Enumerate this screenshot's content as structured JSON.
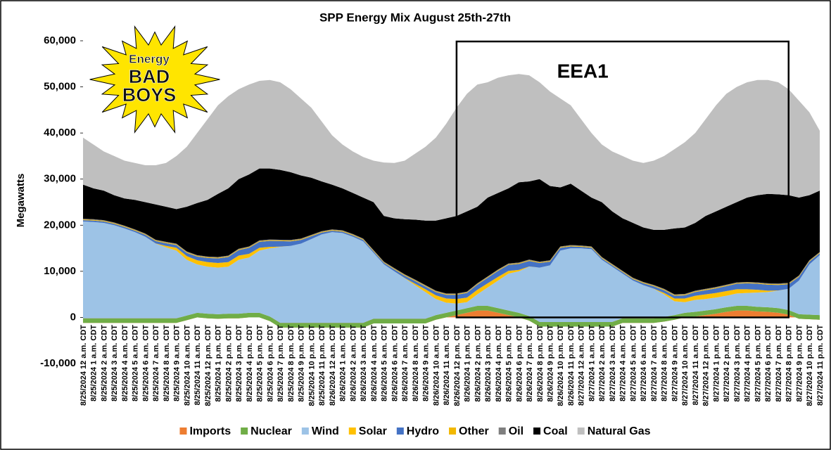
{
  "chart_data": {
    "type": "stacked_area",
    "title": "SPP Energy Mix August 25th-27th",
    "y_label": "Megawatts",
    "logo": {
      "lines": [
        "Energy",
        "BAD",
        "BOYS"
      ]
    },
    "annotation": {
      "text": "EEA1",
      "x_start": "8/26/2024 12 p.m. CDT",
      "x_end": "8/27/2024 8 p.m. CDT"
    },
    "ylim": [
      -10000,
      60000
    ],
    "yticks": [
      {
        "value": -10000,
        "label": "-10,000"
      },
      0,
      {
        "value": 10000,
        "label": "10,000"
      },
      {
        "value": 20000,
        "label": "20,000"
      },
      {
        "value": 30000,
        "label": "30,000"
      },
      {
        "value": 40000,
        "label": "40,000"
      },
      {
        "value": 50000,
        "label": "50,000"
      },
      {
        "value": 60000,
        "label": "60,000"
      }
    ],
    "grid": false,
    "legend": "bottom",
    "categories": [
      "8/25/2024 12 a.m. CDT",
      "8/25/2024 1 a.m. CDT",
      "8/25/2024 2 a.m. CDT",
      "8/25/2024 3 a.m. CDT",
      "8/25/2024 4 a.m. CDT",
      "8/25/2024 5 a.m. CDT",
      "8/25/2024 6 a.m. CDT",
      "8/25/2024 7 a.m. CDT",
      "8/25/2024 8 a.m. CDT",
      "8/25/2024 9 a.m. CDT",
      "8/25/2024 10 a.m. CDT",
      "8/25/2024 11 a.m. CDT",
      "8/25/2024 12 p.m. CDT",
      "8/25/2024 1 p.m. CDT",
      "8/25/2024 2 p.m. CDT",
      "8/25/2024 3 p.m. CDT",
      "8/25/2024 4 p.m. CDT",
      "8/25/2024 5 p.m. CDT",
      "8/25/2024 6 p.m. CDT",
      "8/25/2024 7 p.m. CDT",
      "8/25/2024 8 p.m. CDT",
      "8/25/2024 9 p.m. CDT",
      "8/25/2024 10 p.m. CDT",
      "8/25/2024 11 p.m. CDT",
      "8/26/2024 12 a.m. CDT",
      "8/26/2024 1 a.m. CDT",
      "8/26/2024 2 a.m. CDT",
      "8/26/2024 3 a.m. CDT",
      "8/26/2024 4 a.m. CDT",
      "8/26/2024 5 a.m. CDT",
      "8/26/2024 6 a.m. CDT",
      "8/26/2024 7 a.m. CDT",
      "8/26/2024 8 a.m. CDT",
      "8/26/2024 9 a.m. CDT",
      "8/26/2024 10 a.m. CDT",
      "8/26/2024 11 a.m. CDT",
      "8/26/2024 12 p.m. CDT",
      "8/26/2024 1 p.m. CDT",
      "8/26/2024 2 p.m. CDT",
      "8/26/2024 3 p.m. CDT",
      "8/26/2024 4 p.m. CDT",
      "8/26/2024 5 p.m. CDT",
      "8/26/2024 6 p.m. CDT",
      "8/26/2024 7 p.m. CDT",
      "8/26/2024 8 p.m. CDT",
      "8/26/2024 9 p.m. CDT",
      "8/26/2024 10 p.m. CDT",
      "8/26/2024 11 p.m. CDT",
      "8/27/2024 12 a.m. CDT",
      "8/27/2024 1 a.m. CDT",
      "8/27/2024 2 a.m. CDT",
      "8/27/2024 3 a.m. CDT",
      "8/27/2024 4 a.m. CDT",
      "8/27/2024 5 a.m. CDT",
      "8/27/2024 6 a.m. CDT",
      "8/27/2024 7 a.m. CDT",
      "8/27/2024 8 a.m. CDT",
      "8/27/2024 9 a.m. CDT",
      "8/27/2024 10 a.m. CDT",
      "8/27/2024 11 a.m. CDT",
      "8/27/2024 12 p.m. CDT",
      "8/27/2024 1 p.m. CDT",
      "8/27/2024 2 p.m. CDT",
      "8/27/2024 3 p.m. CDT",
      "8/27/2024 4 p.m. CDT",
      "8/27/2024 5 p.m. CDT",
      "8/27/2024 6 p.m. CDT",
      "8/27/2024 7 p.m. CDT",
      "8/27/2024 8 p.m. CDT",
      "8/27/2024 9 p.m. CDT",
      "8/27/2024 10 p.m. CDT",
      "8/27/2024 11 p.m. CDT"
    ],
    "series": [
      {
        "name": "Imports",
        "color": "#ED7D31",
        "values": [
          -1200,
          -1200,
          -1200,
          -1200,
          -1200,
          -1200,
          -1200,
          -1200,
          -1200,
          -1200,
          -600,
          0,
          -200,
          -300,
          -200,
          -200,
          0,
          0,
          -800,
          -2200,
          -2200,
          -2200,
          -2200,
          -2200,
          -2200,
          -2200,
          -2200,
          -2200,
          -1300,
          -1300,
          -1300,
          -1300,
          -1300,
          -1300,
          -500,
          0,
          500,
          1000,
          1500,
          1500,
          1000,
          500,
          0,
          -700,
          -2000,
          -2000,
          -2000,
          -2000,
          -2000,
          -2000,
          -2000,
          -2000,
          -1200,
          -1200,
          -1200,
          -1200,
          -900,
          -500,
          0,
          200,
          500,
          800,
          1200,
          1500,
          1500,
          1300,
          1200,
          1000,
          600,
          -300,
          -400,
          -500
        ]
      },
      {
        "name": "Nuclear",
        "color": "#70AD47",
        "values": [
          1000,
          1000,
          1000,
          1000,
          1000,
          1000,
          1000,
          1000,
          1000,
          1000,
          1000,
          1000,
          1000,
          1000,
          1000,
          1000,
          1000,
          1000,
          1000,
          1000,
          1000,
          1000,
          1000,
          1000,
          1000,
          1000,
          1000,
          1000,
          1000,
          1000,
          1000,
          1000,
          1000,
          1000,
          1000,
          1000,
          1000,
          1000,
          1000,
          1000,
          1000,
          1000,
          1000,
          1000,
          1000,
          1000,
          1000,
          1000,
          1000,
          1000,
          1000,
          1000,
          1000,
          1000,
          1000,
          1000,
          1000,
          1000,
          1000,
          1000,
          1000,
          1000,
          1000,
          1000,
          1000,
          1000,
          1000,
          1000,
          1000,
          1000,
          1000,
          1000
        ]
      },
      {
        "name": "Wind",
        "color": "#9DC3E6",
        "values": [
          21000,
          20900,
          20700,
          20200,
          19500,
          18700,
          17700,
          16200,
          15400,
          14700,
          12100,
          10500,
          10200,
          10100,
          10200,
          11700,
          12000,
          13500,
          14800,
          16500,
          16700,
          17200,
          18200,
          19200,
          19700,
          19500,
          18700,
          17700,
          14300,
          11800,
          10300,
          8800,
          7300,
          5800,
          3500,
          2200,
          1500,
          1300,
          2500,
          4000,
          6000,
          8000,
          9000,
          10700,
          11800,
          12300,
          15500,
          16000,
          16000,
          15800,
          13500,
          12000,
          9700,
          8200,
          7200,
          6400,
          4900,
          3000,
          2300,
          2600,
          2500,
          2500,
          2500,
          2700,
          2800,
          3100,
          3300,
          3800,
          4600,
          7300,
          10900,
          13000
        ]
      },
      {
        "name": "Solar",
        "color": "#FFC000",
        "values": [
          0,
          0,
          0,
          0,
          0,
          0,
          0,
          50,
          300,
          600,
          800,
          900,
          1000,
          1000,
          1000,
          900,
          800,
          600,
          300,
          50,
          0,
          0,
          0,
          0,
          0,
          0,
          0,
          0,
          0,
          0,
          0,
          50,
          300,
          600,
          800,
          900,
          1000,
          1000,
          1000,
          900,
          800,
          600,
          300,
          50,
          0,
          0,
          0,
          0,
          0,
          0,
          0,
          0,
          0,
          0,
          0,
          50,
          300,
          600,
          800,
          900,
          1000,
          1000,
          1000,
          900,
          800,
          600,
          300,
          50,
          0,
          0,
          0,
          0
        ]
      },
      {
        "name": "Hydro",
        "color": "#4472C4",
        "values": [
          300,
          300,
          300,
          300,
          300,
          300,
          400,
          500,
          600,
          600,
          700,
          800,
          900,
          1000,
          1100,
          1200,
          1300,
          1300,
          1300,
          1200,
          1000,
          800,
          600,
          400,
          300,
          300,
          300,
          300,
          300,
          300,
          400,
          500,
          600,
          600,
          700,
          800,
          900,
          1000,
          1100,
          1200,
          1300,
          1300,
          1300,
          1200,
          1000,
          800,
          600,
          400,
          300,
          300,
          300,
          300,
          300,
          300,
          400,
          500,
          600,
          600,
          700,
          800,
          900,
          1000,
          1100,
          1200,
          1300,
          1300,
          1300,
          1200,
          1000,
          800,
          600,
          400
        ]
      },
      {
        "name": "Other",
        "color": "#F2B800",
        "values": [
          150,
          150,
          150,
          150,
          150,
          150,
          150,
          150,
          150,
          150,
          150,
          150,
          150,
          150,
          150,
          150,
          150,
          150,
          150,
          150,
          150,
          150,
          150,
          150,
          150,
          150,
          150,
          150,
          150,
          150,
          150,
          150,
          150,
          150,
          150,
          150,
          150,
          150,
          150,
          150,
          150,
          150,
          150,
          150,
          150,
          150,
          150,
          150,
          150,
          150,
          150,
          150,
          150,
          150,
          150,
          150,
          150,
          150,
          150,
          150,
          150,
          150,
          150,
          150,
          150,
          150,
          150,
          150,
          150,
          150,
          150,
          150
        ]
      },
      {
        "name": "Oil",
        "color": "#7F7F7F",
        "values": [
          150,
          150,
          150,
          150,
          150,
          150,
          150,
          150,
          150,
          150,
          150,
          150,
          150,
          150,
          150,
          150,
          150,
          150,
          150,
          150,
          150,
          150,
          150,
          150,
          150,
          150,
          150,
          150,
          150,
          150,
          150,
          150,
          150,
          150,
          150,
          150,
          150,
          150,
          150,
          150,
          150,
          150,
          150,
          150,
          150,
          150,
          150,
          150,
          150,
          150,
          150,
          150,
          150,
          150,
          150,
          150,
          150,
          150,
          150,
          150,
          150,
          150,
          150,
          150,
          150,
          150,
          150,
          150,
          150,
          150,
          150,
          150
        ]
      },
      {
        "name": "Coal",
        "color": "#000000",
        "values": [
          7400,
          6700,
          6400,
          5900,
          5900,
          6400,
          6800,
          7650,
          7600,
          7500,
          9700,
          11300,
          12300,
          13700,
          14600,
          15100,
          15600,
          15600,
          15400,
          15150,
          14700,
          13700,
          12400,
          10800,
          9700,
          9100,
          8900,
          8900,
          10400,
          9900,
          10800,
          11950,
          13000,
          14000,
          15200,
          16300,
          16800,
          17400,
          16600,
          17100,
          16600,
          16300,
          17400,
          16950,
          17900,
          16100,
          12800,
          13300,
          11900,
          10600,
          11900,
          11400,
          11400,
          11900,
          11800,
          11950,
          12800,
          14300,
          14400,
          14700,
          15800,
          16400,
          16900,
          17400,
          18300,
          18900,
          19400,
          19350,
          19000,
          16900,
          14100,
          13300
        ]
      },
      {
        "name": "Natural Gas",
        "color": "#BFBFBF",
        "values": [
          10200,
          9500,
          8500,
          8500,
          8200,
          8000,
          8000,
          8500,
          9500,
          11500,
          13000,
          15200,
          17500,
          19200,
          20000,
          19500,
          19500,
          19000,
          19200,
          19000,
          18000,
          16700,
          15200,
          13000,
          10700,
          9500,
          9000,
          8800,
          9000,
          11600,
          12000,
          12700,
          14300,
          16000,
          18000,
          20500,
          23500,
          25500,
          26500,
          25000,
          25000,
          24500,
          23500,
          23000,
          21000,
          20500,
          19300,
          17000,
          15500,
          14000,
          12500,
          13000,
          13500,
          13500,
          14000,
          15000,
          16000,
          17200,
          18500,
          19500,
          21000,
          23000,
          24500,
          25000,
          25000,
          25000,
          24700,
          24300,
          23000,
          21000,
          18000,
          13000
        ]
      }
    ]
  }
}
